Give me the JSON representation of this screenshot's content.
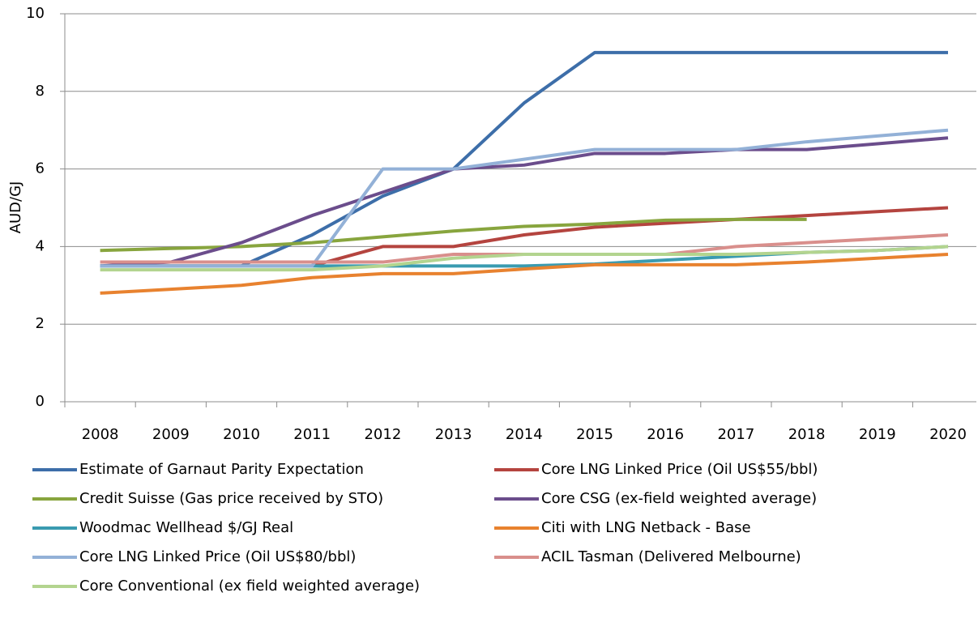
{
  "chart_data": {
    "type": "line",
    "y_label": "AUD/GJ",
    "categories": [
      "2008",
      "2009",
      "2010",
      "2011",
      "2012",
      "2013",
      "2014",
      "2015",
      "2016",
      "2017",
      "2018",
      "2019",
      "2020"
    ],
    "ylim": [
      0,
      10
    ],
    "yticks": [
      0,
      2,
      4,
      6,
      8,
      10
    ],
    "grid": true,
    "series": [
      {
        "name": "Estimate of Garnaut Parity Expectation",
        "color": "#3d6ea9",
        "values": [
          3.5,
          3.5,
          3.5,
          4.3,
          5.3,
          6.0,
          7.7,
          9.0,
          9.0,
          9.0,
          9.0,
          9.0,
          9.0
        ]
      },
      {
        "name": "Core LNG Linked Price (Oil US$55/bbl)",
        "color": "#b4443f",
        "values": [
          3.5,
          3.5,
          3.5,
          3.5,
          4.0,
          4.0,
          4.3,
          4.5,
          4.6,
          4.7,
          4.8,
          4.9,
          5.0
        ]
      },
      {
        "name": "Credit Suisse (Gas price received by STO)",
        "color": "#88a53e",
        "values": [
          3.9,
          3.95,
          4.0,
          4.1,
          4.25,
          4.4,
          4.52,
          4.58,
          4.68,
          4.7,
          4.7,
          null,
          null
        ]
      },
      {
        "name": "Core CSG (ex-field weighted average)",
        "color": "#6b4d8c",
        "values": [
          3.5,
          3.6,
          4.1,
          4.8,
          5.4,
          6.0,
          6.1,
          6.4,
          6.4,
          6.5,
          6.5,
          6.65,
          6.8
        ]
      },
      {
        "name": "Woodmac Wellhead $/GJ Real",
        "color": "#3a9bb0",
        "values": [
          3.5,
          3.5,
          3.5,
          3.5,
          3.5,
          3.5,
          3.5,
          3.55,
          3.65,
          3.75,
          3.85,
          3.9,
          4.0
        ]
      },
      {
        "name": "Citi with LNG Netback - Base",
        "color": "#e8822f",
        "values": [
          2.8,
          2.9,
          3.0,
          3.2,
          3.3,
          3.3,
          3.42,
          3.53,
          3.53,
          3.53,
          3.6,
          3.7,
          3.8
        ]
      },
      {
        "name": "Core LNG Linked Price (Oil US$80/bbl)",
        "color": "#93b1d7",
        "values": [
          3.5,
          3.5,
          3.5,
          3.5,
          6.0,
          6.0,
          6.25,
          6.5,
          6.5,
          6.5,
          6.7,
          6.85,
          7.0
        ]
      },
      {
        "name": "ACIL Tasman (Delivered Melbourne)",
        "color": "#d98f8c",
        "values": [
          3.6,
          3.6,
          3.6,
          3.6,
          3.6,
          3.8,
          3.8,
          3.8,
          3.8,
          4.0,
          4.1,
          4.2,
          4.3
        ]
      },
      {
        "name": "Core Conventional (ex field weighted average)",
        "color": "#b3d48f",
        "values": [
          3.4,
          3.4,
          3.4,
          3.4,
          3.5,
          3.7,
          3.8,
          3.8,
          3.8,
          3.8,
          3.85,
          3.9,
          4.0
        ]
      }
    ]
  }
}
